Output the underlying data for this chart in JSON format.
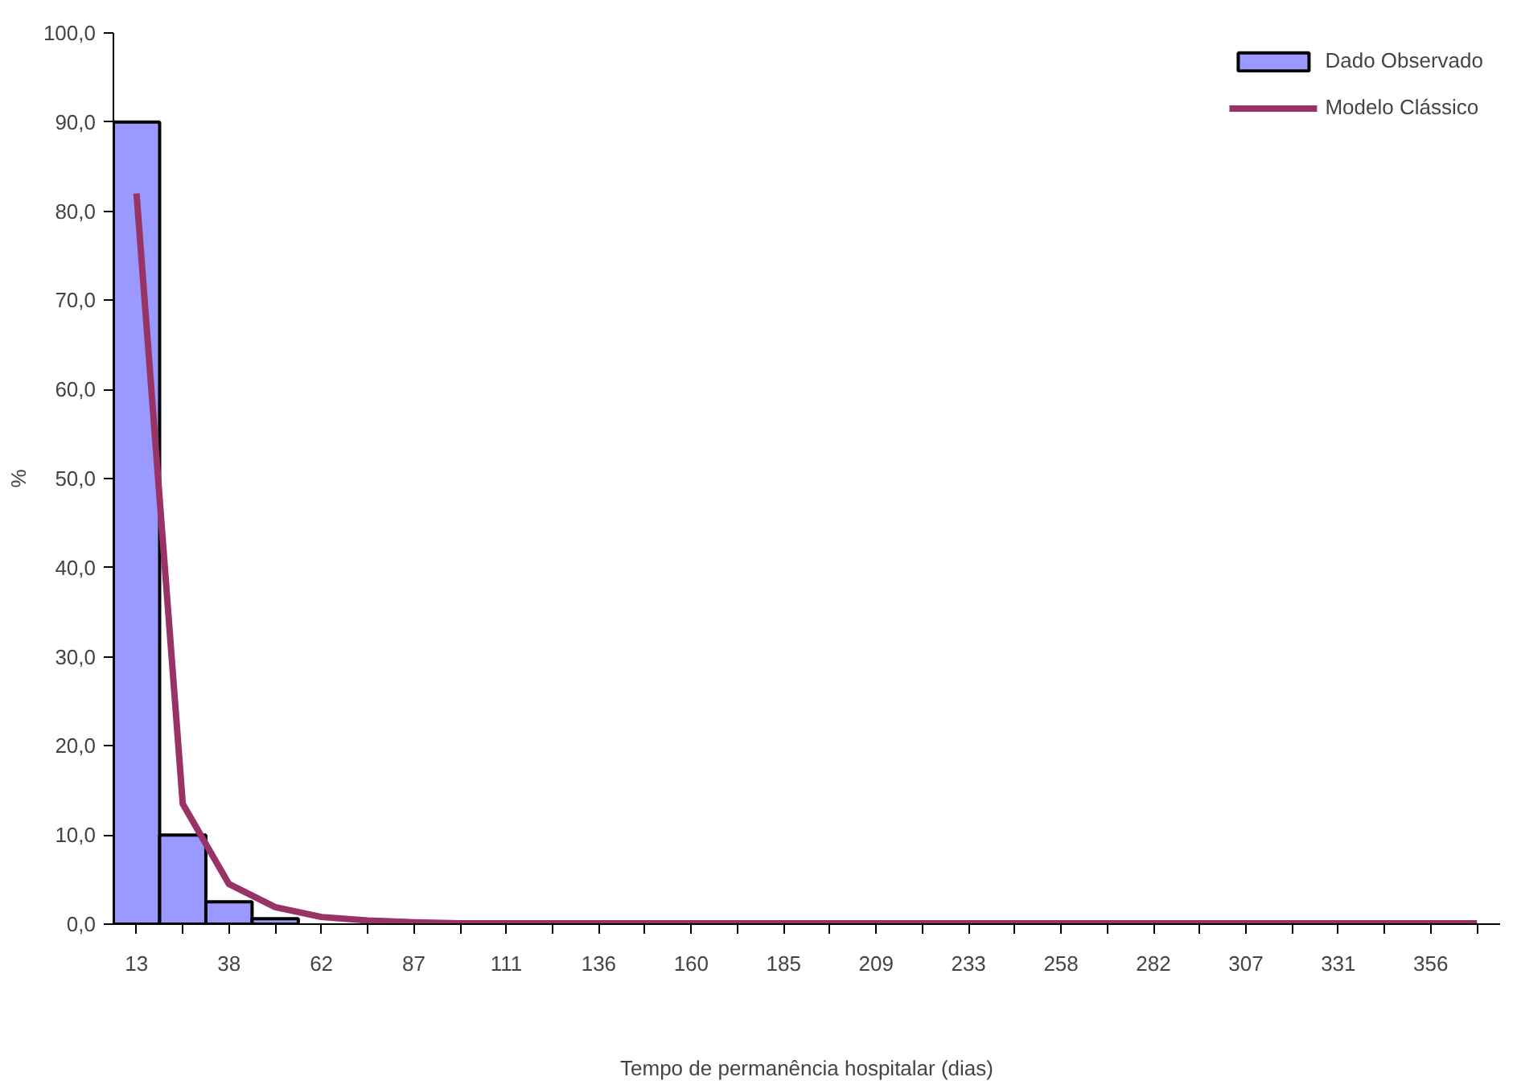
{
  "chart_data": {
    "type": "bar",
    "xlabel": "Tempo de permanência hospitalar (dias)",
    "ylabel": "%",
    "categories": [
      "13",
      null,
      "38",
      null,
      "62",
      null,
      "87",
      null,
      "111",
      null,
      "136",
      null,
      "160",
      null,
      "185",
      null,
      "209",
      null,
      "233",
      null,
      "258",
      null,
      "282",
      null,
      "307",
      null,
      "331",
      null,
      "356",
      null
    ],
    "series": [
      {
        "name": "Dado Observado",
        "color": "#9999ff",
        "values": [
          90.0,
          10.0,
          2.5,
          0.6,
          null,
          null,
          null,
          null,
          null,
          null,
          null,
          null,
          null,
          null,
          null,
          null,
          null,
          null,
          null,
          null,
          null,
          null,
          null,
          null,
          null,
          null,
          null,
          null,
          null,
          null
        ]
      },
      {
        "name": "Modelo Clássico",
        "type": "line",
        "color": "#993366",
        "values": [
          82,
          13.5,
          4.5,
          1.9,
          0.8,
          0.4,
          0.2,
          0.1,
          0.1,
          0.1,
          0.1,
          0.1,
          0.1,
          0.1,
          0.1,
          0.1,
          0.1,
          0.1,
          0.1,
          0.1,
          0.1,
          0.1,
          0.1,
          0.1,
          0.1,
          0.1,
          0.1,
          0.1,
          0.1,
          0.1
        ]
      }
    ],
    "ylim": [
      0,
      100
    ],
    "yticks": [
      {
        "value": 0,
        "label": "0,0"
      },
      {
        "value": 10,
        "label": "10,0"
      },
      {
        "value": 20,
        "label": "20,0"
      },
      {
        "value": 30,
        "label": "30,0"
      },
      {
        "value": 40,
        "label": "40,0"
      },
      {
        "value": 50,
        "label": "50,0"
      },
      {
        "value": 60,
        "label": "60,0"
      },
      {
        "value": 70,
        "label": "70,0"
      },
      {
        "value": 80,
        "label": "80,0"
      },
      {
        "value": 90,
        "label": "90,0"
      },
      {
        "value": 100,
        "label": "100,0"
      }
    ],
    "grid": false,
    "legend": "top right",
    "marker": "none",
    "line_style": "solid"
  }
}
